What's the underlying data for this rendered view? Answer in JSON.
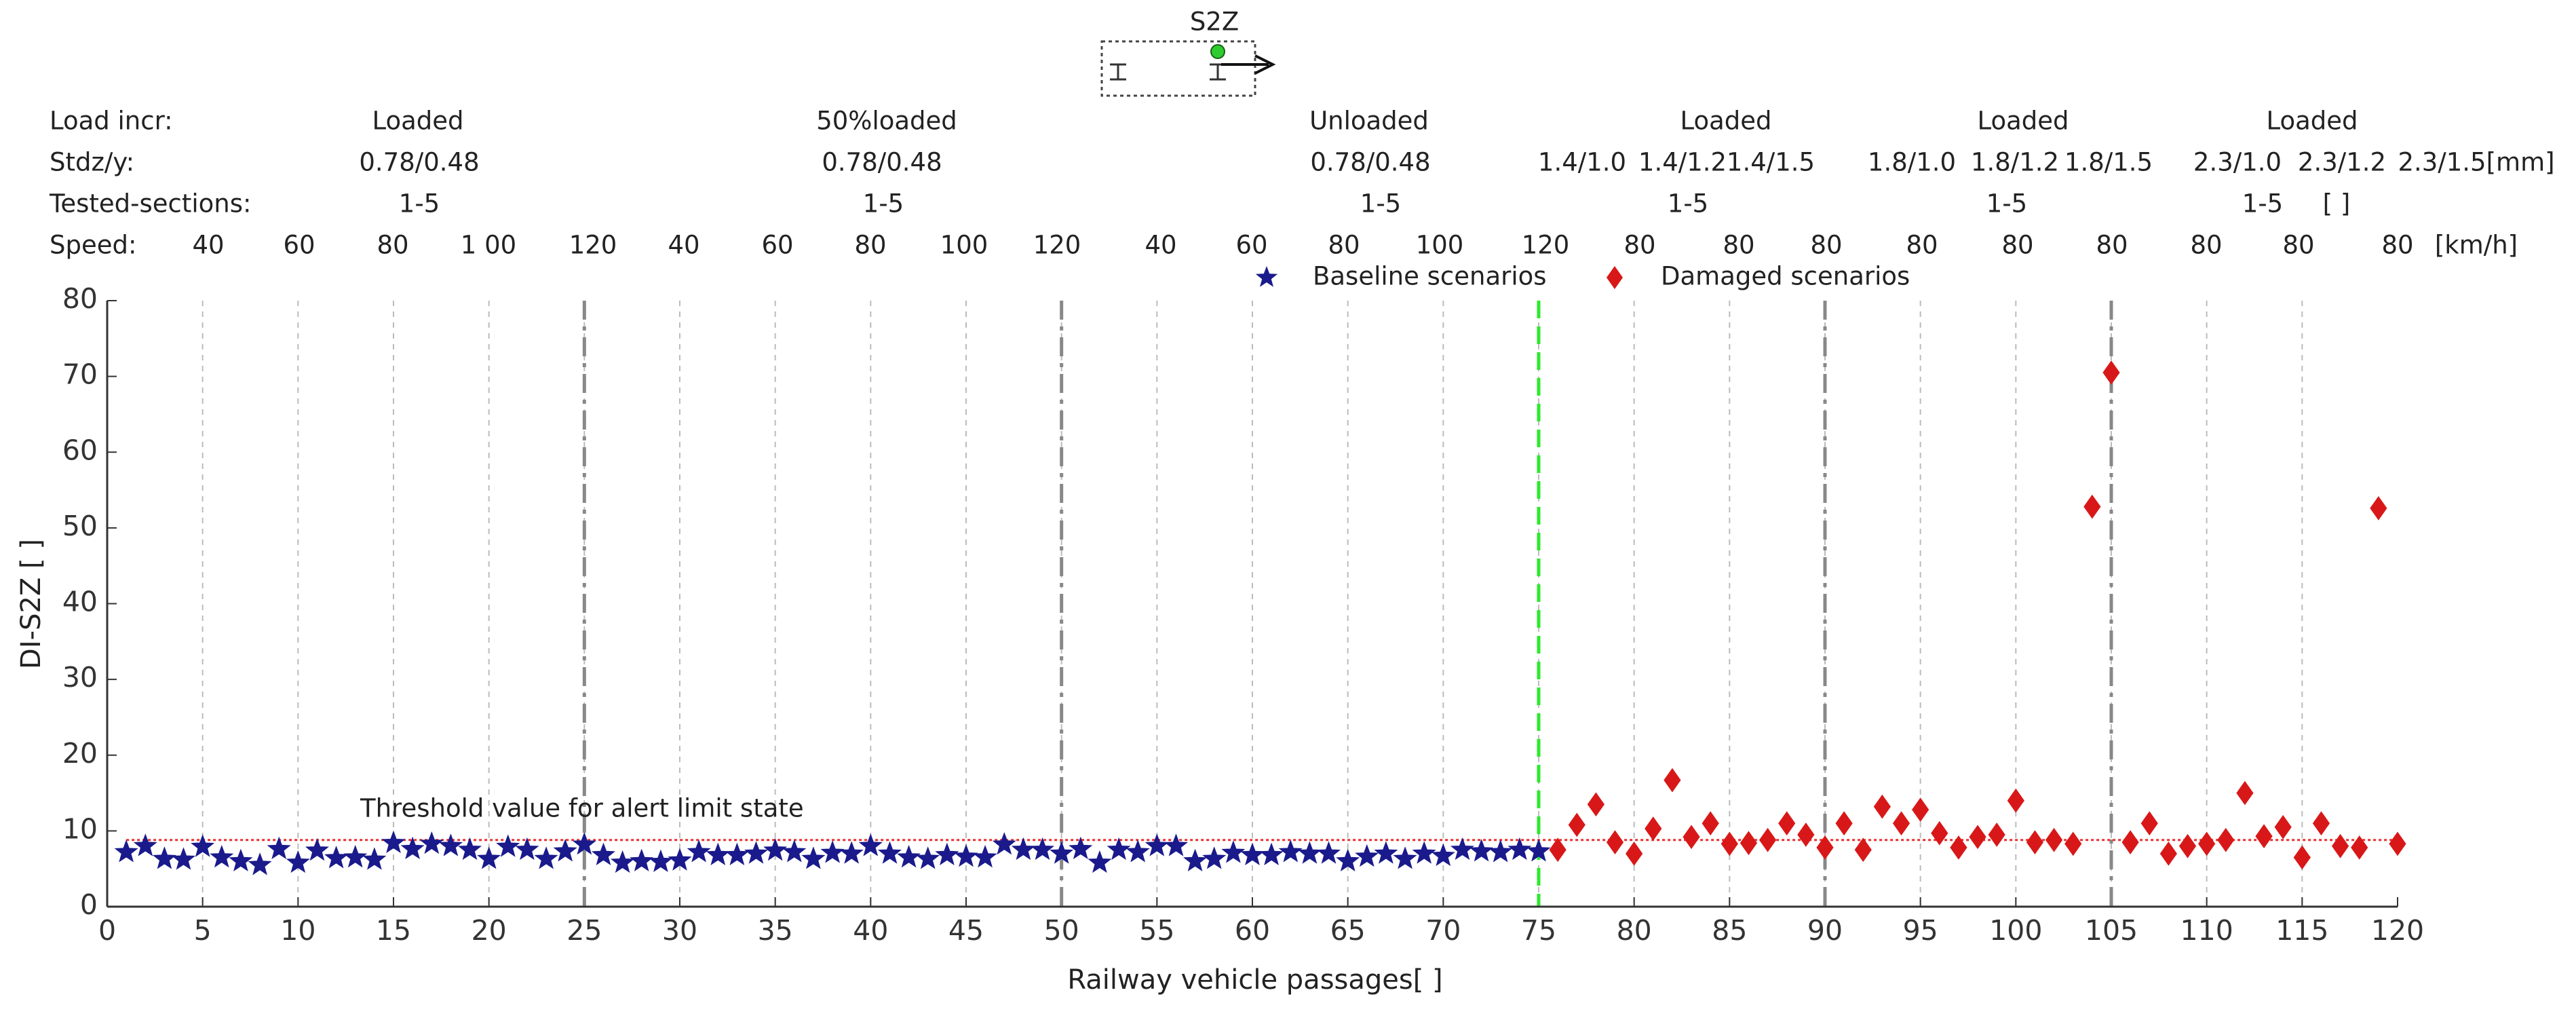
{
  "chart_data": {
    "type": "scatter",
    "icon_label": "S2Z",
    "header": [
      {
        "label": "Load incr:",
        "items": [
          "Loaded",
          "50%loaded",
          "Unloaded",
          "Loaded",
          "Loaded",
          "Loaded"
        ]
      },
      {
        "label": "Stdz/y:",
        "items": [
          "0.78/0.48",
          "0.78/0.48",
          "0.78/0.48",
          "1.4/1.0",
          "1.4/1.2",
          "1.4/1.5",
          "1.8/1.0",
          "1.8/1.2",
          "1.8/1.5",
          "2.3/1.0",
          "2.3/1.2",
          "2.3/1.5[mm]"
        ]
      },
      {
        "label": "Tested-sections:",
        "items": [
          "1-5",
          "1-5",
          "1-5",
          "1-5",
          "1-5",
          "1-5",
          "[ ]"
        ]
      },
      {
        "label": "Speed:",
        "items": [
          "40",
          "60",
          "80",
          "1 00",
          "120",
          "40",
          "60",
          "80",
          "100",
          "120",
          "40",
          "60",
          "80",
          "100",
          "120",
          "80",
          "80",
          "80",
          "80",
          "80",
          "80",
          "80",
          "80",
          "80",
          "[km/h]"
        ]
      }
    ],
    "x_label": "Railway vehicle passages[ ]",
    "y_label": "DI-S2Z [ ]",
    "xlim": [
      0,
      120
    ],
    "xticks": [
      0,
      5,
      10,
      15,
      20,
      25,
      30,
      35,
      40,
      45,
      50,
      55,
      60,
      65,
      70,
      75,
      80,
      85,
      90,
      95,
      100,
      105,
      110,
      115,
      120
    ],
    "ylim": [
      0,
      80
    ],
    "yticks": [
      0,
      10,
      20,
      30,
      40,
      50,
      60,
      70,
      80
    ],
    "grid": true,
    "section_lines": [
      25,
      50,
      90,
      105
    ],
    "split_line": 75,
    "threshold": 8.8,
    "threshold_label": "Threshold value for alert limit state",
    "series": [
      {
        "name": "Baseline scenarios",
        "color": "#1a1a8c",
        "marker": "star",
        "x": [
          1,
          2,
          3,
          4,
          5,
          6,
          7,
          8,
          9,
          10,
          11,
          12,
          13,
          14,
          15,
          16,
          17,
          18,
          19,
          20,
          21,
          22,
          23,
          24,
          25,
          26,
          27,
          28,
          29,
          30,
          31,
          32,
          33,
          34,
          35,
          36,
          37,
          38,
          39,
          40,
          41,
          42,
          43,
          44,
          45,
          46,
          47,
          48,
          49,
          50,
          51,
          52,
          53,
          54,
          55,
          56,
          57,
          58,
          59,
          60,
          61,
          62,
          63,
          64,
          65,
          66,
          67,
          68,
          69,
          70,
          71,
          72,
          73,
          74,
          75
        ],
        "values": [
          7.2,
          8.0,
          6.3,
          6.2,
          7.9,
          6.5,
          6.0,
          5.5,
          7.6,
          5.8,
          7.4,
          6.4,
          6.5,
          6.2,
          8.4,
          7.6,
          8.3,
          8.0,
          7.5,
          6.3,
          7.9,
          7.5,
          6.3,
          7.3,
          8.2,
          6.8,
          5.8,
          6.0,
          5.9,
          6.1,
          7.2,
          6.8,
          6.8,
          7.0,
          7.4,
          7.2,
          6.3,
          7.1,
          7.0,
          8.0,
          7.0,
          6.5,
          6.3,
          6.8,
          6.6,
          6.5,
          8.2,
          7.5,
          7.5,
          7.0,
          7.6,
          5.8,
          7.5,
          7.2,
          8.0,
          8.0,
          6.0,
          6.3,
          7.1,
          6.8,
          6.8,
          7.2,
          7.0,
          7.0,
          6.0,
          6.6,
          7.0,
          6.3,
          7.0,
          6.7,
          7.5,
          7.3,
          7.2,
          7.5,
          7.3
        ]
      },
      {
        "name": "Damaged scenarios",
        "color": "#d81818",
        "marker": "diamond",
        "x": [
          76,
          77,
          78,
          79,
          80,
          81,
          82,
          83,
          84,
          85,
          86,
          87,
          88,
          89,
          90,
          91,
          92,
          93,
          94,
          95,
          96,
          97,
          98,
          99,
          100,
          101,
          102,
          103,
          104,
          105,
          106,
          107,
          108,
          109,
          110,
          111,
          112,
          113,
          114,
          115,
          116,
          117,
          118,
          119,
          120
        ],
        "values": [
          7.5,
          10.8,
          13.5,
          8.5,
          7.0,
          10.3,
          16.7,
          9.2,
          11.0,
          8.3,
          8.4,
          8.8,
          11.0,
          9.5,
          7.8,
          11.0,
          7.5,
          13.2,
          11.0,
          12.8,
          9.7,
          7.8,
          9.2,
          9.5,
          14.0,
          8.5,
          8.8,
          8.3,
          52.8,
          70.5,
          8.5,
          11.0,
          7.0,
          8.0,
          8.3,
          8.8,
          15.0,
          9.3,
          10.5,
          6.5,
          11.0,
          8.0,
          7.8,
          52.6,
          8.3
        ]
      }
    ]
  }
}
